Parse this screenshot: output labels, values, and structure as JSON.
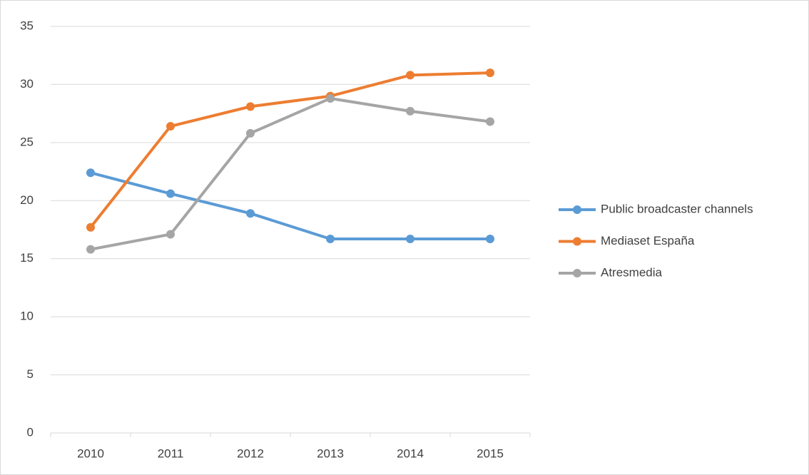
{
  "chart_data": {
    "type": "line",
    "categories": [
      "2010",
      "2011",
      "2012",
      "2013",
      "2014",
      "2015"
    ],
    "series": [
      {
        "name": "Public broadcaster channels",
        "color": "#5b9bd5",
        "values": [
          22.4,
          20.6,
          18.9,
          16.7,
          16.7,
          16.7
        ]
      },
      {
        "name": "Mediaset España",
        "color": "#ed7d31",
        "values": [
          17.7,
          26.4,
          28.1,
          29.0,
          30.8,
          31.0
        ]
      },
      {
        "name": "Atresmedia",
        "color": "#a5a5a5",
        "values": [
          15.8,
          17.1,
          25.8,
          28.8,
          27.7,
          26.8
        ]
      }
    ],
    "ylim": [
      0,
      35
    ],
    "yticks": [
      0,
      5,
      10,
      15,
      20,
      25,
      30,
      35
    ],
    "grid": true,
    "legend": "right"
  }
}
